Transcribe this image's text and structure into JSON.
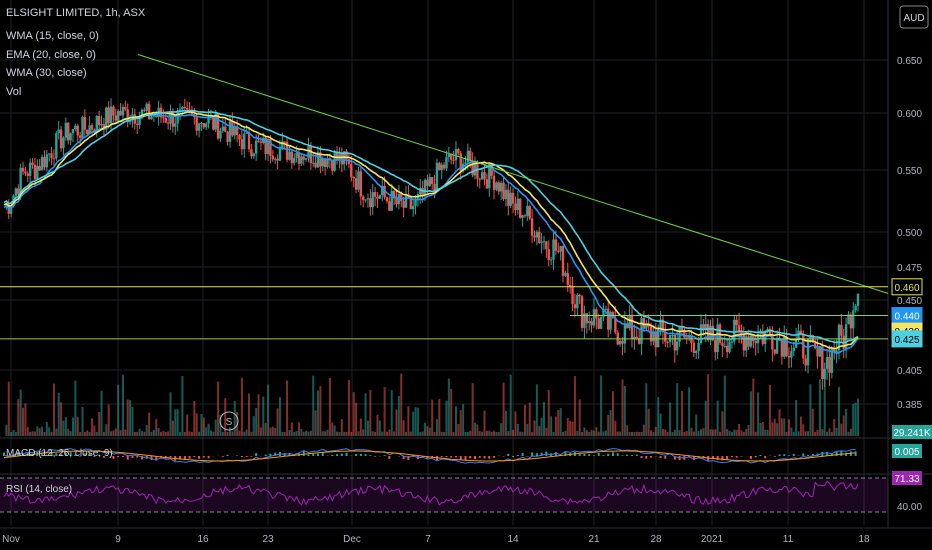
{
  "header": {
    "symbol_line": "ELSIGHT LIMITED, 1h, ASX",
    "currency": "AUD",
    "indicators": [
      "WMA (15, close, 0)",
      "EMA (20, close, 0)",
      "WMA (30, close)",
      "Vol"
    ]
  },
  "colors": {
    "background": "#000000",
    "up_candle": "#26a69a",
    "down_candle": "#ef5350",
    "wma15": "#2196f3",
    "ema20": "#f5e663",
    "wma30": "#4dd0e1",
    "trendline": "#6cd34a",
    "resistance_line": "#e6e15a",
    "support_line": "#8ccf5a",
    "macd": "#3d7bff",
    "signal": "#ff9800",
    "rsi": "#9c27b0"
  },
  "chart_data": [
    {
      "type": "candlestick",
      "title": "ELSIGHT LIMITED, 1h, ASX",
      "ylabel": "AUD",
      "ylim": [
        0.37,
        0.68
      ],
      "y_ticks": [
        "0.650",
        "0.600",
        "0.550",
        "0.500",
        "0.475",
        "0.450",
        "0.405",
        "0.385"
      ],
      "x_ticks": [
        "Nov",
        "9",
        "16",
        "23",
        "Dec",
        "7",
        "14",
        "21",
        "28",
        "2021",
        "11",
        "18"
      ],
      "price_series": {
        "x": [
          "Nov",
          "9",
          "16",
          "23",
          "Dec",
          "7",
          "14",
          "21",
          "28",
          "2021",
          "11",
          "18"
        ],
        "close": [
          0.56,
          0.59,
          0.595,
          0.565,
          0.52,
          0.56,
          0.44,
          0.425,
          0.425,
          0.42,
          0.41,
          0.46
        ]
      },
      "ma_series": [
        {
          "name": "WMA (15, close, 0)",
          "color": "#2196f3"
        },
        {
          "name": "EMA (20, close, 0)",
          "color": "#f5e663"
        },
        {
          "name": "WMA (30, close)",
          "color": "#4dd0e1"
        }
      ],
      "horizontal_lines": [
        {
          "value": 0.46,
          "label": "0.460",
          "color": "#e6e15a"
        },
        {
          "value": 0.44,
          "label": "0.440",
          "color": "#8ccf5a"
        },
        {
          "value": 0.425,
          "label": "0.425",
          "color": "#8ccf5a"
        }
      ],
      "trendline": {
        "from": {
          "x": "9",
          "y": 0.655
        },
        "to": {
          "x": "18",
          "y": 0.46
        }
      },
      "price_labels": [
        {
          "value": 0.46,
          "text": "0.460",
          "bg": "#000000",
          "fg": "#e6e15a",
          "border": "#e6e15a"
        },
        {
          "value": 0.44,
          "text": "0.440",
          "bg": "#2196f3",
          "fg": "#ffffff"
        },
        {
          "value": 0.43,
          "text": "0.430",
          "bg": "#f5e663",
          "fg": "#000000"
        },
        {
          "value": 0.425,
          "text": "0.425",
          "bg": "#4dd0e1",
          "fg": "#000000"
        }
      ]
    },
    {
      "type": "bar",
      "title": "Vol",
      "last_value_label": "29.241K"
    },
    {
      "type": "line",
      "title": "MACD (12, 26, close, 9)",
      "last_value_label": "0.005"
    },
    {
      "type": "line",
      "title": "RSI (14, close)",
      "y_ticks": [
        "71.33",
        "40.00"
      ],
      "bands": [
        70,
        30
      ]
    }
  ]
}
